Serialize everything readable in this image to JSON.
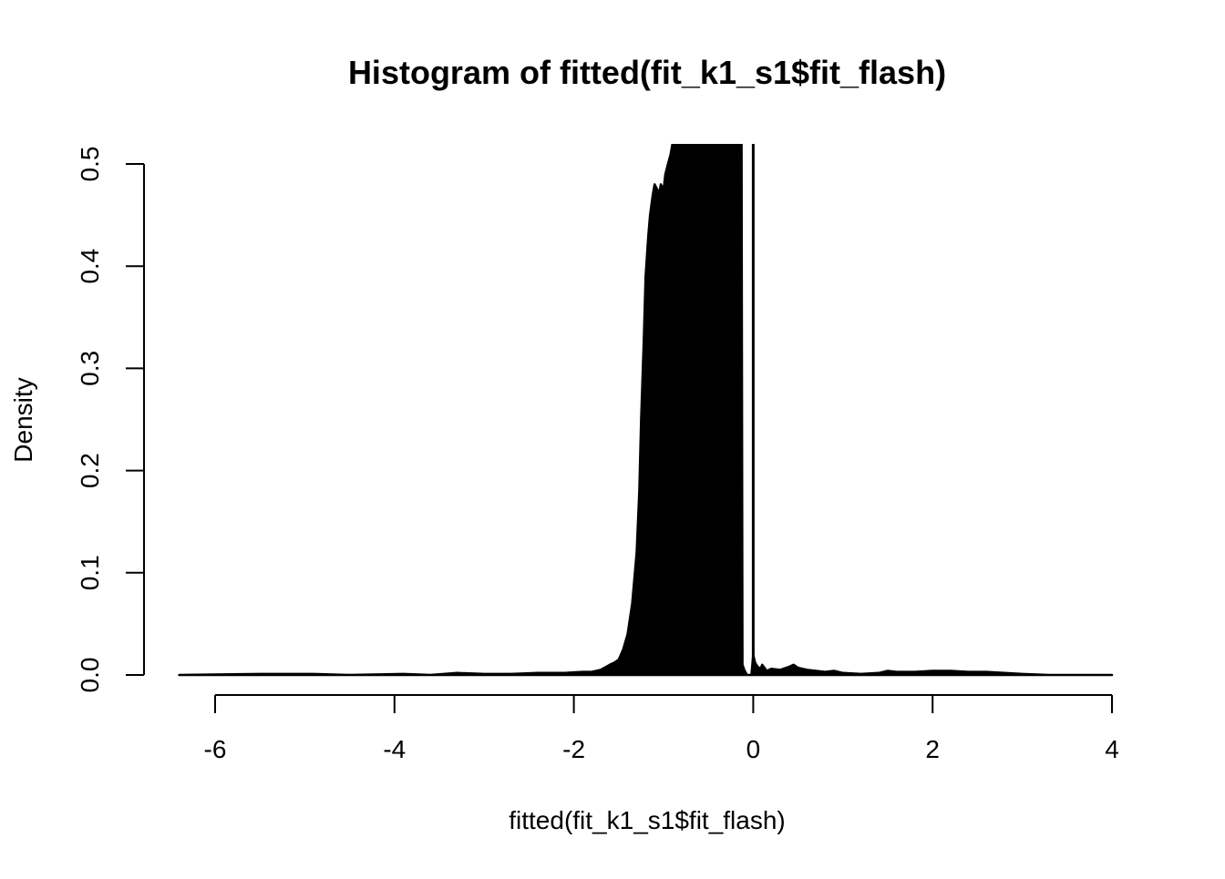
{
  "chart_data": {
    "type": "area",
    "title": "Histogram of fitted(fit_k1_s1$fit_flash)",
    "xlabel": "fitted(fit_k1_s1$fit_flash)",
    "ylabel": "Density",
    "xlim": [
      -6.4,
      4.0
    ],
    "ylim": [
      0,
      0.52
    ],
    "x_ticks": [
      -6,
      -4,
      -2,
      0,
      2,
      4
    ],
    "x_tick_labels": [
      "-6",
      "-4",
      "-2",
      "0",
      "2",
      "4"
    ],
    "y_ticks": [
      0.0,
      0.1,
      0.2,
      0.3,
      0.4,
      0.5
    ],
    "y_tick_labels": [
      "0.0",
      "0.1",
      "0.2",
      "0.3",
      "0.4",
      "0.5"
    ],
    "grid": false,
    "series": [
      {
        "color": "#000000",
        "x": [
          -6.4,
          -5.5,
          -4.9,
          -4.5,
          -3.9,
          -3.6,
          -3.3,
          -3.0,
          -2.7,
          -2.4,
          -2.1,
          -1.9,
          -1.8,
          -1.7,
          -1.6,
          -1.55,
          -1.5,
          -1.45,
          -1.4,
          -1.35,
          -1.3,
          -1.27,
          -1.25,
          -1.22,
          -1.2,
          -1.17,
          -1.15,
          -1.12,
          -1.1,
          -1.07,
          -1.05,
          -1.03,
          -1.0,
          -0.98,
          -0.95,
          -0.92,
          -0.9,
          -0.88,
          -0.86,
          -0.84,
          -0.8,
          -0.7,
          -0.5,
          -0.3,
          -0.13,
          -0.12,
          -0.1,
          -0.07,
          -0.05,
          -0.02,
          0.0,
          0.02,
          0.05,
          0.08,
          0.1,
          0.15,
          0.2,
          0.3,
          0.4,
          0.45,
          0.5,
          0.6,
          0.7,
          0.8,
          0.9,
          1.0,
          1.2,
          1.4,
          1.5,
          1.6,
          1.8,
          2.0,
          2.2,
          2.4,
          2.6,
          2.8,
          3.0,
          3.3,
          3.6,
          4.0
        ],
        "y": [
          0,
          0.001,
          0.001,
          0.0,
          0.001,
          0.0,
          0.002,
          0.001,
          0.001,
          0.002,
          0.002,
          0.003,
          0.003,
          0.005,
          0.01,
          0.012,
          0.015,
          0.025,
          0.04,
          0.07,
          0.12,
          0.18,
          0.25,
          0.33,
          0.39,
          0.43,
          0.45,
          0.47,
          0.48,
          0.475,
          0.47,
          0.48,
          0.475,
          0.49,
          0.5,
          0.51,
          0.52,
          0.52,
          0.52,
          0.52,
          0.52,
          0.52,
          0.52,
          0.52,
          0.52,
          0.01,
          0.005,
          0.0,
          0.0,
          0.0,
          0.02,
          0.012,
          0.008,
          0.006,
          0.01,
          0.004,
          0.006,
          0.005,
          0.008,
          0.01,
          0.007,
          0.005,
          0.004,
          0.003,
          0.004,
          0.002,
          0.001,
          0.002,
          0.004,
          0.003,
          0.003,
          0.004,
          0.004,
          0.003,
          0.003,
          0.002,
          0.001,
          0.0,
          0.0,
          0.0
        ]
      }
    ],
    "vertical_line_x": 0.0
  }
}
